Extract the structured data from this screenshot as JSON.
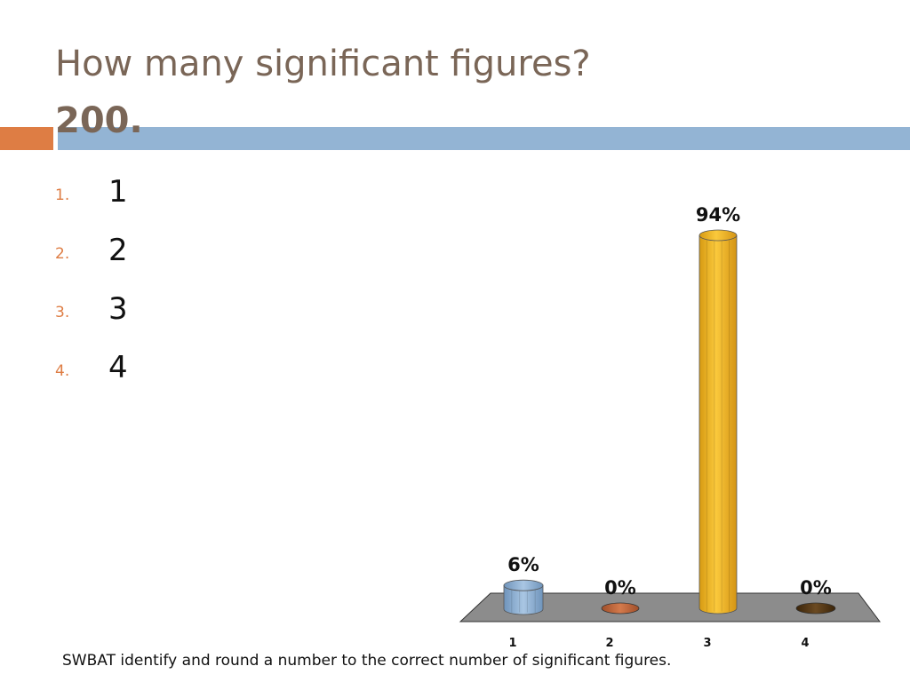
{
  "slide": {
    "title": "How many significant figures?",
    "subtitle": "200.",
    "options": [
      {
        "num": "1.",
        "text": "1"
      },
      {
        "num": "2.",
        "text": "2"
      },
      {
        "num": "3.",
        "text": "3"
      },
      {
        "num": "4.",
        "text": "4"
      }
    ],
    "footer": "SWBAT identify and round a number to the correct number of significant figures."
  },
  "colors": {
    "title": "#7a6657",
    "accent_orange": "#de7d44",
    "accent_blue": "#93b4d4",
    "floor": "#8c8c8c",
    "bar_colors": [
      "#8fb2d6",
      "#c0643a",
      "#f2b52b",
      "#4a2f12"
    ]
  },
  "chart_data": {
    "type": "bar",
    "style": "3d-cylinder",
    "categories": [
      "1",
      "2",
      "3",
      "4"
    ],
    "values": [
      6,
      0,
      94,
      0
    ],
    "data_labels": [
      "6%",
      "0%",
      "94%",
      "0%"
    ],
    "ylim": [
      0,
      100
    ],
    "grid": false,
    "legend": "none",
    "title": "",
    "xlabel": "",
    "ylabel": ""
  }
}
